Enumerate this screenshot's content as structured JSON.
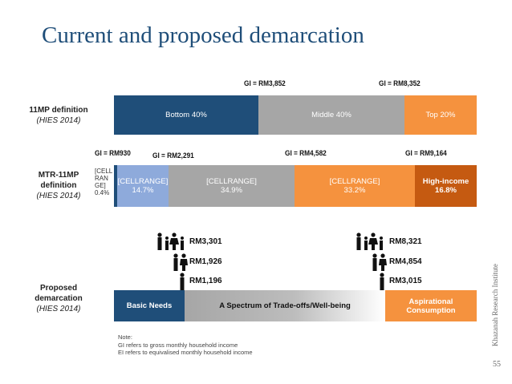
{
  "title": "Current and proposed demarcation",
  "rows": {
    "r1": {
      "label": "11MP definition",
      "sub": "(HIES 2014)"
    },
    "r2": {
      "label_a": "MTR-11MP",
      "label_b": "definition",
      "sub": "(HIES 2014)"
    },
    "r3": {
      "label_a": "Proposed",
      "label_b": "demarcation",
      "sub": "(HIES 2014)"
    }
  },
  "chart_data": [
    {
      "type": "bar",
      "row": "11MP definition",
      "segments": [
        {
          "label": "Bottom 40%",
          "share": 40,
          "color": "#1f4e79"
        },
        {
          "label": "Middle 40%",
          "share": 40,
          "color": "#a6a6a6"
        },
        {
          "label": "Top 20%",
          "share": 20,
          "color": "#f5923e"
        }
      ],
      "thresholds": [
        "GI = RM3,852",
        "GI = RM8,352"
      ]
    },
    {
      "type": "bar",
      "row": "MTR-11MP definition",
      "segments": [
        {
          "label_a": "[CELL",
          "label_b": "RAN",
          "label_c": "GE]",
          "value": "0.4%",
          "share": 0.4,
          "color": "#1f4e79"
        },
        {
          "label": "[CELLRANGE]",
          "value": "14.7%",
          "share": 14.7,
          "color": "#8eaadb"
        },
        {
          "label": "[CELLRANGE]",
          "value": "34.9%",
          "share": 34.9,
          "color": "#a6a6a6"
        },
        {
          "label": "[CELLRANGE]",
          "value": "33.2%",
          "share": 33.2,
          "color": "#f5923e"
        },
        {
          "label": "High-income",
          "value": "16.8%",
          "share": 16.8,
          "color": "#c55a11"
        }
      ],
      "thresholds": [
        "GI = RM930",
        "GI = RM2,291",
        "GI = RM4,582",
        "GI = RM9,164"
      ]
    },
    {
      "type": "bar",
      "row": "Proposed demarcation",
      "segments": [
        {
          "label": "Basic Needs",
          "color": "#1f4e79"
        },
        {
          "label": "A Spectrum of Trade-offs/Well-being",
          "color_from": "#a6a6a6",
          "color_to": "#ffffff"
        },
        {
          "label_a": "Aspirational",
          "label_b": "Consumption",
          "color": "#f5923e"
        }
      ],
      "lower_amounts": [
        "RM3,301",
        "RM1,926",
        "RM1,196"
      ],
      "upper_amounts": [
        "RM8,321",
        "RM4,854",
        "RM3,015"
      ]
    }
  ],
  "note": {
    "heading": "Note:",
    "line1": "GI refers to gross monthly household income",
    "line2": "EI refers to equivalised monthly household income"
  },
  "source": "Khazanah Research Institute",
  "page_number": "55",
  "icons": {
    "family": "family-icon",
    "couple": "couple-icon",
    "person": "person-icon"
  }
}
